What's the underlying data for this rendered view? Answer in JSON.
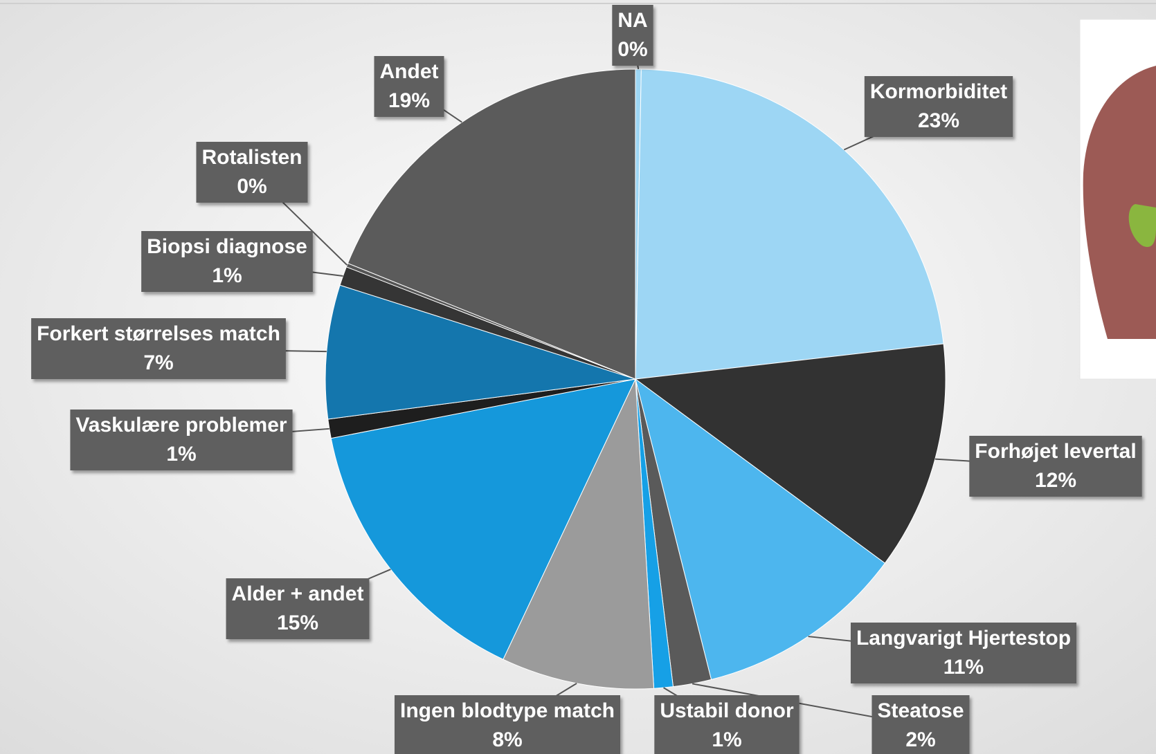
{
  "chart_data": {
    "type": "pie",
    "categories": [
      "NA",
      "Kormorbiditet",
      "Forhøjet levertal",
      "Langvarigt Hjertestop",
      "Steatose",
      "Ustabil donor",
      "Ingen blodtype match",
      "Alder + andet",
      "Vaskulære problemer",
      "Forkert størrelses match",
      "Biopsi diagnose",
      "Rotalisten",
      "Andet"
    ],
    "values": [
      0.3,
      23,
      12,
      11,
      2,
      1,
      8,
      15,
      1,
      7,
      1,
      0.2,
      19
    ],
    "value_labels": [
      "0%",
      "23%",
      "12%",
      "11%",
      "2%",
      "1%",
      "8%",
      "15%",
      "1%",
      "7%",
      "1%",
      "0%",
      "19%"
    ],
    "colors": [
      "#9dd6f4",
      "#9dd6f4",
      "#323232",
      "#4db6ee",
      "#5a5a5a",
      "#16a0e6",
      "#9b9b9b",
      "#1598db",
      "#1e1e1e",
      "#1476ad",
      "#353535",
      "#555555",
      "#5b5b5b"
    ]
  }
}
